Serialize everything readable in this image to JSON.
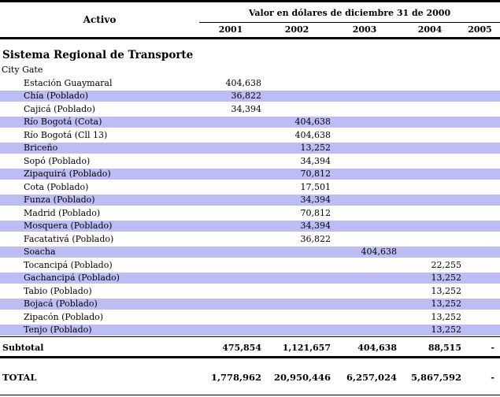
{
  "header": {
    "activo_label": "Activo",
    "value_title": "Valor en dólares de diciembre 31 de 2000",
    "years": [
      "2001",
      "2002",
      "2003",
      "2004",
      "2005"
    ]
  },
  "section": {
    "title": "Sistema Regional de Transporte",
    "group": "City Gate"
  },
  "rows": [
    {
      "name": "Estación Guaymaral",
      "values": [
        "404,638",
        "",
        "",
        "",
        ""
      ],
      "highlight": false
    },
    {
      "name": "Chía (Poblado)",
      "values": [
        "36,822",
        "",
        "",
        "",
        ""
      ],
      "highlight": true
    },
    {
      "name": "Cajicá (Poblado)",
      "values": [
        "34,394",
        "",
        "",
        "",
        ""
      ],
      "highlight": false
    },
    {
      "name": "Río Bogotá (Cota)",
      "values": [
        "",
        "404,638",
        "",
        "",
        ""
      ],
      "highlight": true
    },
    {
      "name": "Río Bogotá (Cll 13)",
      "values": [
        "",
        "404,638",
        "",
        "",
        ""
      ],
      "highlight": false
    },
    {
      "name": "Briceño",
      "values": [
        "",
        "13,252",
        "",
        "",
        ""
      ],
      "highlight": true
    },
    {
      "name": "Sopó (Poblado)",
      "values": [
        "",
        "34,394",
        "",
        "",
        ""
      ],
      "highlight": false
    },
    {
      "name": "Zipaquirá (Poblado)",
      "values": [
        "",
        "70,812",
        "",
        "",
        ""
      ],
      "highlight": true
    },
    {
      "name": "Cota (Poblado)",
      "values": [
        "",
        "17,501",
        "",
        "",
        ""
      ],
      "highlight": false
    },
    {
      "name": "Funza (Poblado)",
      "values": [
        "",
        "34,394",
        "",
        "",
        ""
      ],
      "highlight": true
    },
    {
      "name": "Madrid (Poblado)",
      "values": [
        "",
        "70,812",
        "",
        "",
        ""
      ],
      "highlight": false
    },
    {
      "name": "Mosquera (Poblado)",
      "values": [
        "",
        "34,394",
        "",
        "",
        ""
      ],
      "highlight": true
    },
    {
      "name": "Facatativá (Poblado)",
      "values": [
        "",
        "36,822",
        "",
        "",
        ""
      ],
      "highlight": false
    },
    {
      "name": "Soacha",
      "values": [
        "",
        "",
        "404,638",
        "",
        ""
      ],
      "highlight": true
    },
    {
      "name": "Tocancipá (Poblado)",
      "values": [
        "",
        "",
        "",
        "22,255",
        ""
      ],
      "highlight": false
    },
    {
      "name": "Gachancipá (Poblado)",
      "values": [
        "",
        "",
        "",
        "13,252",
        ""
      ],
      "highlight": true
    },
    {
      "name": "Tabio (Poblado)",
      "values": [
        "",
        "",
        "",
        "13,252",
        ""
      ],
      "highlight": false
    },
    {
      "name": "Bojacá (Poblado)",
      "values": [
        "",
        "",
        "",
        "13,252",
        ""
      ],
      "highlight": true
    },
    {
      "name": "Zipacón (Poblado)",
      "values": [
        "",
        "",
        "",
        "13,252",
        ""
      ],
      "highlight": false
    },
    {
      "name": "Tenjo (Poblado)",
      "values": [
        "",
        "",
        "",
        "13,252",
        ""
      ],
      "highlight": true
    }
  ],
  "subtotal": {
    "label": "Subtotal",
    "values": [
      "475,854",
      "1,121,657",
      "404,638",
      "88,515",
      "-"
    ]
  },
  "total": {
    "label": "TOTAL",
    "values": [
      "1,778,962",
      "20,950,446",
      "6,257,024",
      "5,867,592",
      "-"
    ]
  },
  "colors": {
    "highlight": "#bdbdf5"
  }
}
